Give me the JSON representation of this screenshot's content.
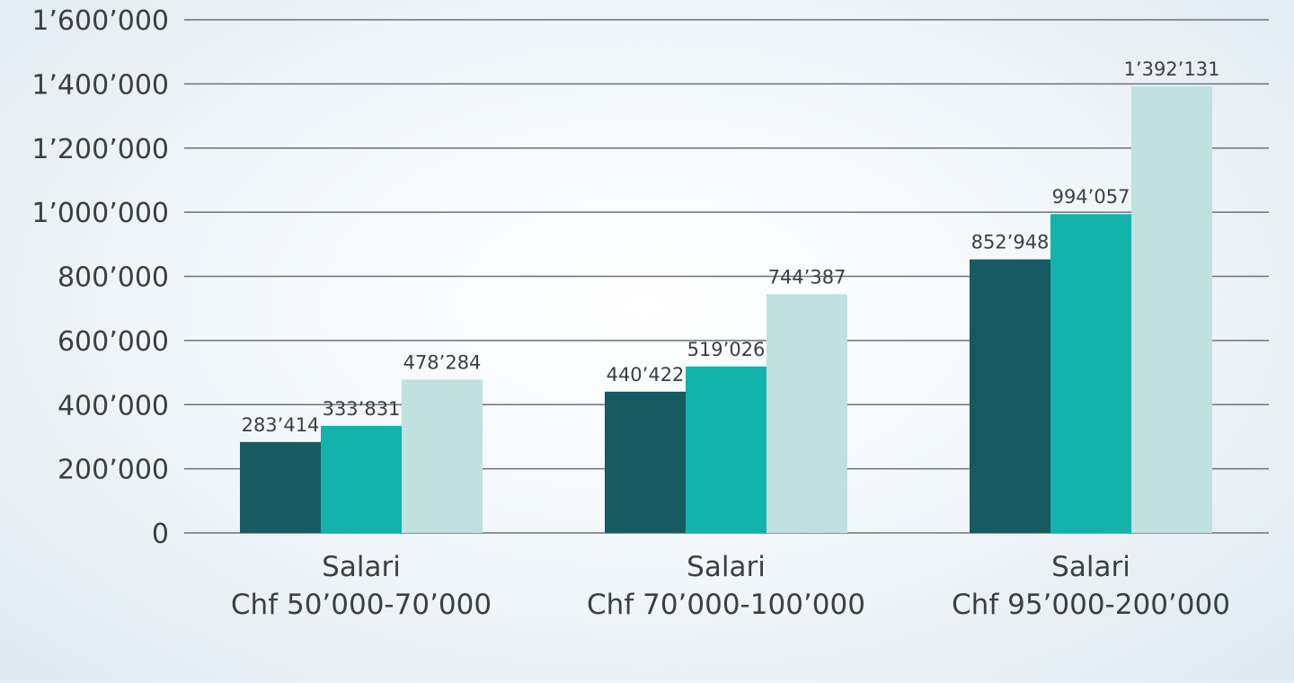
{
  "chart_data": {
    "type": "bar",
    "title": "",
    "xlabel": "",
    "ylabel": "",
    "ylim": [
      0,
      1600000
    ],
    "yticks": [
      0,
      200000,
      400000,
      600000,
      800000,
      1000000,
      1200000,
      1400000,
      1600000
    ],
    "ytick_labels": [
      "0",
      "200’000",
      "400’000",
      "600’000",
      "800’000",
      "1’000’000",
      "1’200’000",
      "1’400’000",
      "1’600’000"
    ],
    "grid": true,
    "legend": "none",
    "categories": [
      [
        "Salari",
        "Chf 50’000-70’000"
      ],
      [
        "Salari",
        "Chf 70’000-100’000"
      ],
      [
        "Salari",
        "Chf 95’000-200’000"
      ]
    ],
    "series": [
      {
        "name": "series-1",
        "color": "#175a62",
        "values": [
          283414,
          440422,
          852948
        ],
        "labels": [
          "283’414",
          "440’422",
          "852’948"
        ]
      },
      {
        "name": "series-2",
        "color": "#12b3ab",
        "values": [
          333831,
          519026,
          994057
        ],
        "labels": [
          "333’831",
          "519’026",
          "994’057"
        ]
      },
      {
        "name": "series-3",
        "color": "#c0e1df",
        "values": [
          478284,
          744387,
          1392131
        ],
        "labels": [
          "478’284",
          "744’387",
          "1’392’131"
        ]
      }
    ]
  }
}
